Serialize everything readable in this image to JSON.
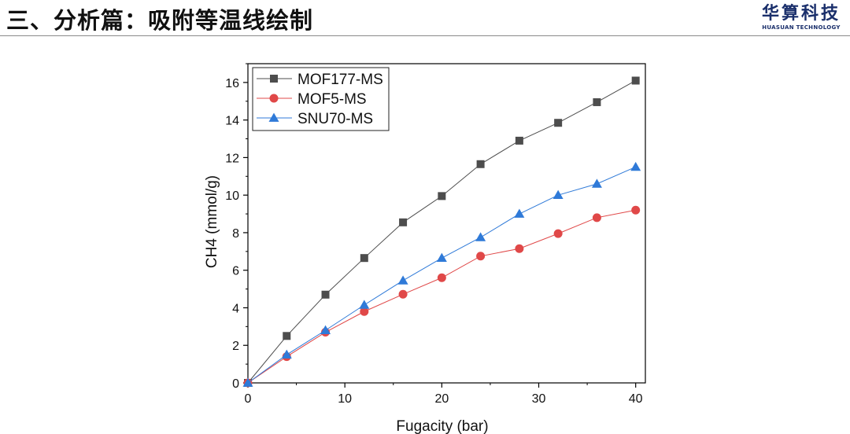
{
  "header": {
    "title": "三、分析篇：吸附等温线绘制",
    "logo_cn": "华算科技",
    "logo_en": "HUASUAN TECHNOLOGY"
  },
  "chart_data": {
    "type": "line",
    "title": "",
    "xlabel": "Fugacity (bar)",
    "ylabel": "CH4 (mmol/g)",
    "xlim": [
      0,
      41
    ],
    "ylim": [
      0,
      17
    ],
    "xticks": [
      0,
      10,
      20,
      30,
      40
    ],
    "yticks": [
      0,
      2,
      4,
      6,
      8,
      10,
      12,
      14,
      16
    ],
    "grid": false,
    "legend_position": "top-left",
    "x": [
      0,
      4,
      8,
      12,
      16,
      20,
      24,
      28,
      32,
      36,
      40
    ],
    "series": [
      {
        "name": "MOF177-MS",
        "marker": "square",
        "color": "#4d4d4d",
        "values": [
          0,
          2.5,
          4.7,
          6.65,
          8.55,
          9.95,
          11.65,
          12.9,
          13.85,
          14.95,
          16.1
        ]
      },
      {
        "name": "MOF5-MS",
        "marker": "circle",
        "color": "#e04848",
        "values": [
          0,
          1.4,
          2.7,
          3.8,
          4.72,
          5.6,
          6.75,
          7.15,
          7.95,
          8.8,
          9.2
        ]
      },
      {
        "name": "SNU70-MS",
        "marker": "triangle",
        "color": "#2f7ad8",
        "values": [
          0,
          1.5,
          2.8,
          4.15,
          5.45,
          6.65,
          7.75,
          9.0,
          10.0,
          10.6,
          11.5
        ]
      }
    ]
  }
}
